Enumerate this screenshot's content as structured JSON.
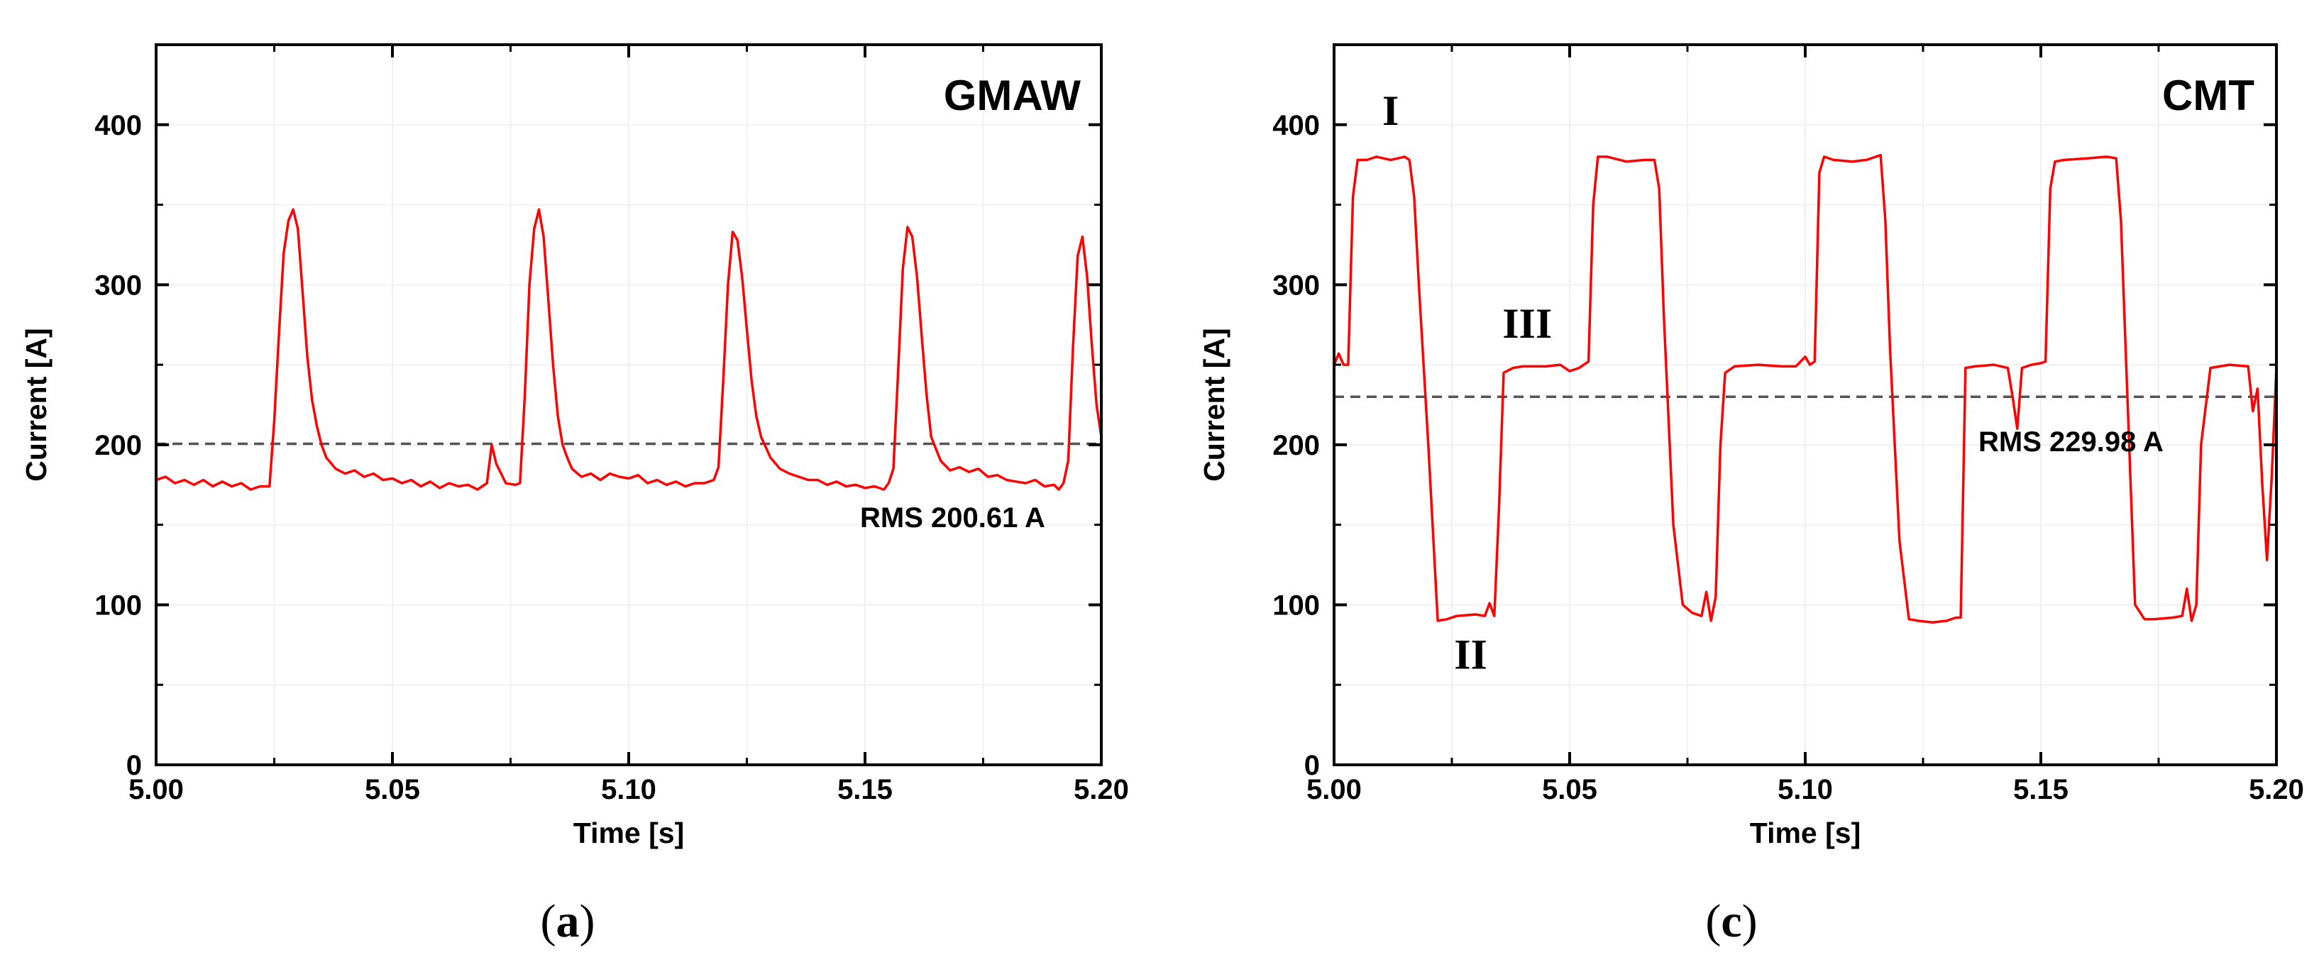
{
  "chart_data": [
    {
      "type": "line",
      "panel": "a",
      "caption_letter": "a",
      "title": "GMAW",
      "xlabel": "Time [s]",
      "ylabel": "Current [A]",
      "xlim": [
        5.0,
        5.2
      ],
      "ylim": [
        0,
        450
      ],
      "xticks": [
        "5.00",
        "5.05",
        "5.10",
        "5.15",
        "5.20"
      ],
      "yticks": [
        "0",
        "100",
        "200",
        "300",
        "400"
      ],
      "reference_line": {
        "value": 200.61,
        "style": "dashed",
        "label": "RMS 200.61 A"
      },
      "series": [
        {
          "name": "Current",
          "color": "#ff0000",
          "x": [
            5.0,
            5.002,
            5.004,
            5.006,
            5.008,
            5.01,
            5.012,
            5.014,
            5.016,
            5.018,
            5.02,
            5.022,
            5.024,
            5.025,
            5.026,
            5.027,
            5.028,
            5.029,
            5.03,
            5.031,
            5.032,
            5.033,
            5.034,
            5.035,
            5.036,
            5.038,
            5.04,
            5.042,
            5.044,
            5.046,
            5.048,
            5.05,
            5.052,
            5.054,
            5.056,
            5.058,
            5.06,
            5.062,
            5.064,
            5.066,
            5.068,
            5.07,
            5.071,
            5.072,
            5.073,
            5.074,
            5.076,
            5.077,
            5.078,
            5.079,
            5.08,
            5.081,
            5.082,
            5.083,
            5.084,
            5.085,
            5.086,
            5.087,
            5.088,
            5.09,
            5.092,
            5.094,
            5.096,
            5.098,
            5.1,
            5.102,
            5.104,
            5.106,
            5.108,
            5.11,
            5.112,
            5.114,
            5.116,
            5.118,
            5.119,
            5.12,
            5.121,
            5.122,
            5.123,
            5.124,
            5.125,
            5.126,
            5.127,
            5.128,
            5.13,
            5.132,
            5.134,
            5.136,
            5.138,
            5.14,
            5.142,
            5.144,
            5.146,
            5.148,
            5.15,
            5.152,
            5.154,
            5.155,
            5.156,
            5.157,
            5.158,
            5.159,
            5.16,
            5.161,
            5.162,
            5.163,
            5.164,
            5.166,
            5.168,
            5.17,
            5.172,
            5.174,
            5.176,
            5.178,
            5.18,
            5.182,
            5.184,
            5.186,
            5.188,
            5.19,
            5.191,
            5.192,
            5.193,
            5.194,
            5.195,
            5.196,
            5.197,
            5.198,
            5.199,
            5.2
          ],
          "y": [
            178,
            180,
            176,
            178,
            175,
            178,
            174,
            177,
            174,
            176,
            172,
            174,
            174,
            215,
            270,
            320,
            340,
            347,
            335,
            295,
            255,
            228,
            212,
            200,
            192,
            185,
            182,
            184,
            180,
            182,
            178,
            179,
            176,
            178,
            174,
            177,
            173,
            176,
            174,
            175,
            172,
            176,
            200,
            188,
            182,
            176,
            175,
            176,
            230,
            300,
            335,
            347,
            330,
            290,
            250,
            218,
            200,
            192,
            185,
            180,
            182,
            178,
            182,
            180,
            179,
            181,
            176,
            178,
            175,
            177,
            174,
            176,
            176,
            178,
            186,
            240,
            300,
            333,
            328,
            305,
            272,
            240,
            218,
            205,
            192,
            185,
            182,
            180,
            178,
            178,
            175,
            177,
            174,
            175,
            173,
            174,
            172,
            176,
            185,
            245,
            310,
            336,
            330,
            305,
            268,
            232,
            205,
            190,
            184,
            186,
            183,
            185,
            180,
            181,
            178,
            177,
            176,
            178,
            174,
            175,
            172,
            176,
            190,
            260,
            318,
            330,
            305,
            262,
            225,
            205
          ]
        }
      ]
    },
    {
      "type": "line",
      "panel": "c",
      "caption_letter": "c",
      "title": "CMT",
      "xlabel": "Time [s]",
      "ylabel": "Current [A]",
      "xlim": [
        5.0,
        5.2
      ],
      "ylim": [
        0,
        450
      ],
      "xticks": [
        "5.00",
        "5.05",
        "5.10",
        "5.15",
        "5.20"
      ],
      "yticks": [
        "0",
        "100",
        "200",
        "300",
        "400"
      ],
      "reference_line": {
        "value": 229.98,
        "style": "dashed",
        "label": "RMS 229.98 A"
      },
      "annotations": [
        {
          "text": "I",
          "x": 5.012,
          "y": 400
        },
        {
          "text": "II",
          "x": 5.029,
          "y": 60
        },
        {
          "text": "III",
          "x": 5.041,
          "y": 267
        }
      ],
      "series": [
        {
          "name": "Current",
          "color": "#ff0000",
          "x": [
            5.0,
            5.001,
            5.002,
            5.003,
            5.004,
            5.005,
            5.007,
            5.009,
            5.012,
            5.015,
            5.016,
            5.017,
            5.018,
            5.02,
            5.022,
            5.024,
            5.026,
            5.03,
            5.032,
            5.033,
            5.034,
            5.035,
            5.036,
            5.038,
            5.04,
            5.045,
            5.048,
            5.05,
            5.052,
            5.053,
            5.054,
            5.055,
            5.056,
            5.058,
            5.062,
            5.066,
            5.068,
            5.069,
            5.07,
            5.072,
            5.074,
            5.076,
            5.078,
            5.079,
            5.08,
            5.081,
            5.082,
            5.083,
            5.085,
            5.09,
            5.095,
            5.098,
            5.1,
            5.101,
            5.102,
            5.103,
            5.104,
            5.106,
            5.11,
            5.113,
            5.116,
            5.117,
            5.118,
            5.12,
            5.122,
            5.124,
            5.127,
            5.13,
            5.132,
            5.133,
            5.134,
            5.136,
            5.14,
            5.143,
            5.144,
            5.145,
            5.146,
            5.148,
            5.15,
            5.151,
            5.152,
            5.153,
            5.155,
            5.16,
            5.164,
            5.166,
            5.167,
            5.168,
            5.17,
            5.172,
            5.174,
            5.178,
            5.18,
            5.181,
            5.182,
            5.183,
            5.184,
            5.186,
            5.19,
            5.194,
            5.195,
            5.196,
            5.197,
            5.198,
            5.199,
            5.2
          ],
          "y": [
            250,
            257,
            250,
            250,
            355,
            378,
            378,
            380,
            378,
            380,
            378,
            355,
            300,
            200,
            90,
            91,
            93,
            94,
            93,
            101,
            93,
            160,
            245,
            248,
            249,
            249,
            250,
            246,
            248,
            250,
            252,
            350,
            380,
            380,
            377,
            378,
            378,
            360,
            280,
            150,
            100,
            95,
            93,
            108,
            90,
            105,
            200,
            245,
            249,
            250,
            249,
            249,
            255,
            250,
            252,
            370,
            380,
            378,
            377,
            378,
            381,
            340,
            260,
            140,
            91,
            90,
            89,
            90,
            92,
            92,
            248,
            249,
            250,
            248,
            230,
            210,
            248,
            250,
            251,
            252,
            360,
            377,
            378,
            379,
            380,
            379,
            340,
            260,
            100,
            91,
            91,
            92,
            93,
            110,
            90,
            100,
            200,
            248,
            250,
            249,
            221,
            235,
            175,
            128,
            180,
            248
          ]
        }
      ]
    }
  ]
}
